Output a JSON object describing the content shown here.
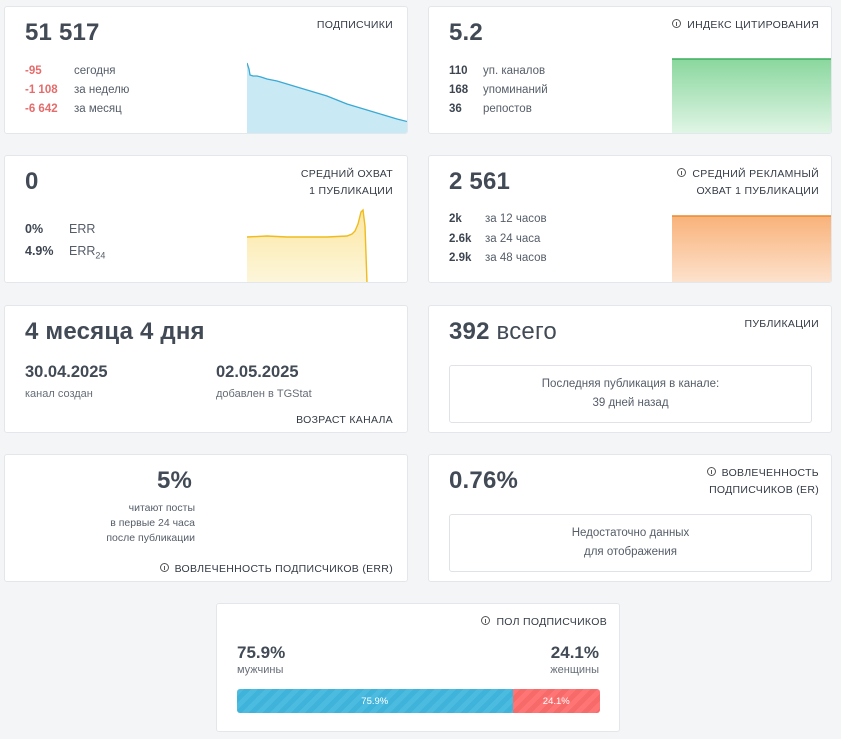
{
  "subscribers": {
    "value": "51 517",
    "label": "подписчики",
    "rows": [
      {
        "v": "-95",
        "t": "сегодня"
      },
      {
        "v": "-1 108",
        "t": "за неделю"
      },
      {
        "v": "-6 642",
        "t": "за месяц"
      }
    ]
  },
  "citation": {
    "value": "5.2",
    "label": "индекс цитирования",
    "rows": [
      {
        "v": "110",
        "t": "уп. каналов"
      },
      {
        "v": "168",
        "t": "упоминаний"
      },
      {
        "v": "36",
        "t": "репостов"
      }
    ]
  },
  "reach": {
    "value": "0",
    "label_line1": "средний охват",
    "label_line2": "1 публикации",
    "rows": [
      {
        "v": "0%",
        "t": "ERR"
      },
      {
        "v": "4.9%",
        "t": "ERR",
        "sub": "24"
      }
    ]
  },
  "ad_reach": {
    "value": "2 561",
    "label_line1": "средний рекламный",
    "label_line2": "охват 1 публикации",
    "rows": [
      {
        "v": "2k",
        "t": "за 12 часов"
      },
      {
        "v": "2.6k",
        "t": "за 24 часа"
      },
      {
        "v": "2.9k",
        "t": "за 48 часов"
      }
    ]
  },
  "age": {
    "value": "4 месяца 4 дня",
    "created_date": "30.04.2025",
    "created_label": "канал создан",
    "added_date": "02.05.2025",
    "added_label": "добавлен в TGStat",
    "label": "возраст канала"
  },
  "publications": {
    "count": "392",
    "count_suffix": "всего",
    "label": "публикации",
    "last_line1": "Последняя публикация в канале:",
    "last_line2": "39 дней назад"
  },
  "err24": {
    "value": "5%",
    "desc_line1": "читают посты",
    "desc_line2": "в первые 24 часа",
    "desc_line3": "после публикации",
    "label": "вовлеченность подписчиков (ERR)"
  },
  "er": {
    "value": "0.76%",
    "label_line1": "вовлеченность",
    "label_line2": "подписчиков (ER)",
    "empty_line1": "Недостаточно данных",
    "empty_line2": "для отображения"
  },
  "gender": {
    "label": "пол подписчиков",
    "male_value": "75.9%",
    "male_label": "мужчины",
    "female_value": "24.1%",
    "female_label": "женщины",
    "male_share": 75.9,
    "female_share": 24.1,
    "bar_male": "75.9%",
    "bar_female": "24.1%"
  },
  "colors": {
    "blue": "#4cb8dc",
    "green": "#5fc77a",
    "yellow": "#f2c230",
    "orange": "#f59a45",
    "negative": "#e66b6b"
  }
}
